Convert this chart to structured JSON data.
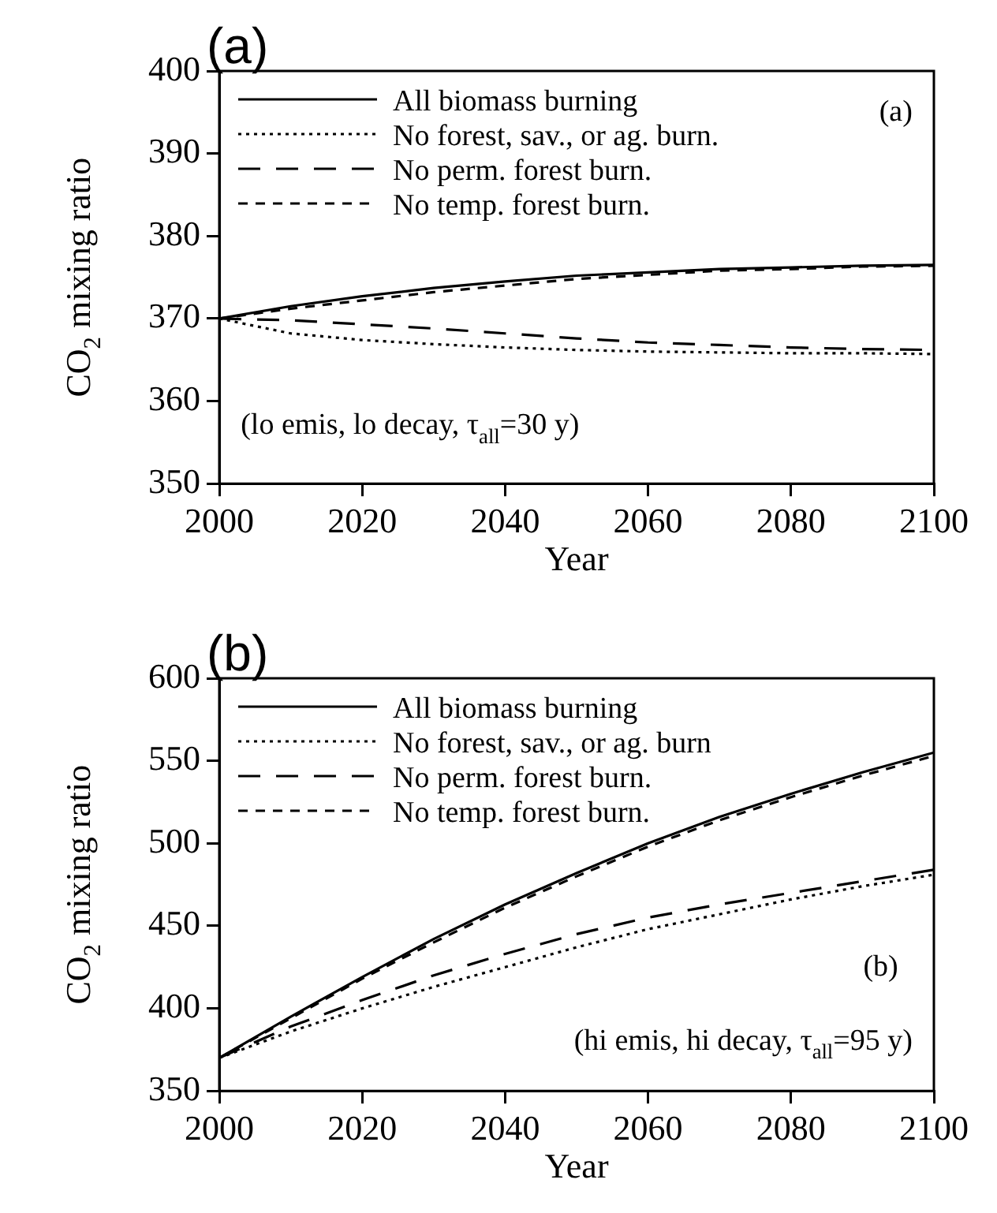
{
  "chart_data": [
    {
      "type": "line",
      "title": "(a)",
      "xlabel": "Year",
      "ylabel": "CO$_{2}$ mixing ratio",
      "x": [
        2000,
        2010,
        2020,
        2030,
        2040,
        2050,
        2060,
        2070,
        2080,
        2090,
        2100
      ],
      "series": [
        {
          "name": "All biomass burning",
          "color": "#000000",
          "line_style": "solid",
          "values": [
            370,
            371.5,
            372.7,
            373.7,
            374.5,
            375.2,
            375.6,
            376,
            376.2,
            376.4,
            376.5
          ]
        },
        {
          "name": "No forest, sav., or ag. burn.",
          "color": "#000000",
          "line_style": "dotted",
          "values": [
            370,
            368.2,
            367.4,
            366.9,
            366.5,
            366.2,
            366,
            365.9,
            365.8,
            365.8,
            365.7
          ]
        },
        {
          "name": "No perm. forest burn.",
          "color": "#000000",
          "line_style": "dashed",
          "values": [
            370,
            369.8,
            369.3,
            368.8,
            368.2,
            367.6,
            367.1,
            366.8,
            366.5,
            366.3,
            366.2
          ]
        },
        {
          "name": "No temp. forest burn.",
          "color": "#000000",
          "line_style": "dashed",
          "values": [
            370,
            371.2,
            372.2,
            373.2,
            374,
            374.8,
            375.3,
            375.8,
            376,
            376.3,
            376.4
          ]
        }
      ],
      "annotations": [
        "(a)",
        "(lo emis, lo decay, τ$_{all}$=30 y)"
      ],
      "xlim": [
        2000,
        2100
      ],
      "xticks": [
        2000,
        2020,
        2040,
        2060,
        2080,
        2100
      ],
      "ylim": [
        350,
        400
      ],
      "yticks": [
        350,
        360,
        370,
        380,
        390,
        400
      ],
      "grid": false,
      "legend": "top left",
      "marker": "none"
    },
    {
      "type": "line",
      "title": "(b)",
      "xlabel": "Year",
      "ylabel": "CO$_{2}$ mixing ratio",
      "x": [
        2000,
        2010,
        2020,
        2030,
        2040,
        2050,
        2060,
        2070,
        2080,
        2090,
        2100
      ],
      "series": [
        {
          "name": "All biomass burning",
          "color": "#000000",
          "line_style": "solid",
          "values": [
            370,
            395,
            419,
            442,
            463,
            482,
            500,
            516,
            530,
            543,
            555
          ]
        },
        {
          "name": "No forest, sav., or ag. burn",
          "color": "#000000",
          "line_style": "dotted",
          "values": [
            370,
            386,
            400,
            413,
            425,
            437,
            448,
            457,
            466,
            474,
            481
          ]
        },
        {
          "name": "No perm. forest burn.",
          "color": "#000000",
          "line_style": "dashed",
          "values": [
            370,
            389,
            405,
            420,
            433,
            445,
            455,
            463,
            470,
            477,
            484
          ]
        },
        {
          "name": "No temp. forest burn.",
          "color": "#000000",
          "line_style": "dashed",
          "values": [
            370,
            394,
            418,
            440,
            461,
            480,
            498,
            514,
            528,
            541,
            553
          ]
        }
      ],
      "annotations": [
        "(b)",
        "(hi emis, hi decay, τ$_{all}$=95 y)"
      ],
      "xlim": [
        2000,
        2100
      ],
      "xticks": [
        2000,
        2020,
        2040,
        2060,
        2080,
        2100
      ],
      "ylim": [
        350,
        600
      ],
      "yticks": [
        350,
        400,
        450,
        500,
        550,
        600
      ],
      "grid": false,
      "legend": "top left",
      "marker": "none"
    }
  ]
}
